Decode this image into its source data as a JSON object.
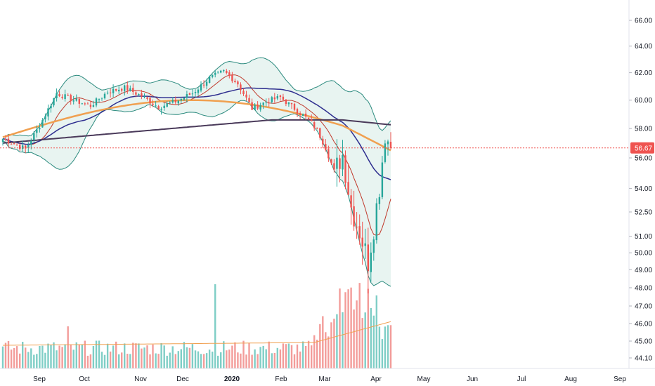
{
  "chart_data": {
    "type": "candlestick",
    "title": "",
    "price_axis": {
      "ticks": [
        "66.00",
        "64.00",
        "62.00",
        "60.00",
        "58.00",
        "56.00",
        "54.00",
        "52.50",
        "51.00",
        "50.00",
        "49.00",
        "48.00",
        "47.00",
        "46.00",
        "45.00",
        "44.10"
      ],
      "tick_values": [
        66.0,
        64.0,
        62.0,
        60.0,
        58.0,
        56.0,
        54.0,
        52.5,
        51.0,
        50.0,
        49.0,
        48.0,
        47.0,
        46.0,
        45.0,
        44.1
      ],
      "scale": "log",
      "range": [
        44.1,
        66.0
      ]
    },
    "time_axis": {
      "labels": [
        "Sep",
        "Oct",
        "Nov",
        "Dec",
        "2020",
        "Feb",
        "Mar",
        "Apr",
        "May",
        "Jun",
        "Jul",
        "Aug",
        "Sep"
      ]
    },
    "last_price": {
      "label": "56.67",
      "value": 56.67
    },
    "bollinger_bands": true,
    "moving_averages": [
      "short",
      "medium",
      "long"
    ],
    "volume_panel": true,
    "colors": {
      "up": "#26a69a",
      "down": "#ef5350",
      "volume_up": "#7fcec6",
      "volume_down": "#f39c9a",
      "bb_band": "#2b8a7e",
      "bb_fill": "#e8f4f1",
      "ma_short": "#c0392b",
      "ma_medium": "#2e2e8f",
      "ma_long_orange": "#f0a050",
      "ma_long_dark": "#4a3a5a",
      "last_price_line": "#ef5350",
      "axis_text": "#131722"
    }
  }
}
